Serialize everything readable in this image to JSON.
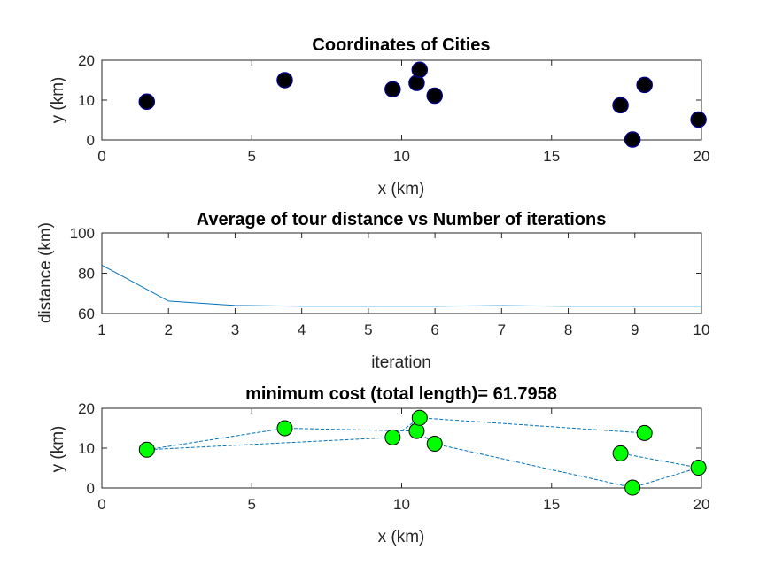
{
  "colors": {
    "background": "#ffffff",
    "axes": "#262626",
    "line": "#0072bd",
    "city_fill": "#000000",
    "city_edge": "#00007f",
    "route_marker_fill": "#00ff00",
    "route_marker_edge": "#000000"
  },
  "chart_data": [
    {
      "type": "scatter",
      "title": "Coordinates of Cities",
      "xlabel": "x  (km)",
      "ylabel": "y  (km)",
      "xlim": [
        0,
        20
      ],
      "ylim": [
        0,
        20
      ],
      "xticks": [
        0,
        5,
        10,
        15,
        20
      ],
      "yticks": [
        0,
        10,
        20
      ],
      "grid": false,
      "points": [
        {
          "x": 1.5,
          "y": 9.6
        },
        {
          "x": 6.1,
          "y": 15.0
        },
        {
          "x": 9.7,
          "y": 12.7
        },
        {
          "x": 10.5,
          "y": 14.3
        },
        {
          "x": 10.6,
          "y": 17.6
        },
        {
          "x": 11.1,
          "y": 11.1
        },
        {
          "x": 17.3,
          "y": 8.7
        },
        {
          "x": 17.7,
          "y": 0.1
        },
        {
          "x": 18.1,
          "y": 13.8
        },
        {
          "x": 19.9,
          "y": 5.1
        }
      ]
    },
    {
      "type": "line",
      "title": "Average of tour distance vs Number of iterations",
      "xlabel": "iteration",
      "ylabel": "distance (km)",
      "xlim": [
        1,
        10
      ],
      "ylim": [
        60,
        100
      ],
      "xticks": [
        1,
        2,
        3,
        4,
        5,
        6,
        7,
        8,
        9,
        10
      ],
      "yticks": [
        60,
        80,
        100
      ],
      "grid": false,
      "x": [
        1,
        2,
        3,
        4,
        5,
        6,
        7,
        8,
        9,
        10
      ],
      "y": [
        84.0,
        66.2,
        64.0,
        63.6,
        63.6,
        63.6,
        63.9,
        63.6,
        63.6,
        63.6
      ]
    },
    {
      "type": "line",
      "title": "minimum cost (total length)= 61.7958",
      "xlabel": "x (km)",
      "ylabel": "y (km)",
      "xlim": [
        0,
        20
      ],
      "ylim": [
        0,
        20
      ],
      "xticks": [
        0,
        5,
        10,
        15,
        20
      ],
      "yticks": [
        0,
        10,
        20
      ],
      "grid": false,
      "line_style": "dashed",
      "route": [
        {
          "x": 1.5,
          "y": 9.6
        },
        {
          "x": 6.1,
          "y": 15.0
        },
        {
          "x": 10.5,
          "y": 14.3
        },
        {
          "x": 11.1,
          "y": 11.1
        },
        {
          "x": 17.7,
          "y": 0.1
        },
        {
          "x": 19.9,
          "y": 5.1
        },
        {
          "x": 17.3,
          "y": 8.7
        }
      ],
      "route2": [
        {
          "x": 18.1,
          "y": 13.8
        },
        {
          "x": 10.6,
          "y": 17.6
        },
        {
          "x": 9.7,
          "y": 12.7
        },
        {
          "x": 1.5,
          "y": 9.6
        }
      ],
      "points": [
        {
          "x": 1.5,
          "y": 9.6
        },
        {
          "x": 6.1,
          "y": 15.0
        },
        {
          "x": 9.7,
          "y": 12.7
        },
        {
          "x": 10.5,
          "y": 14.3
        },
        {
          "x": 10.6,
          "y": 17.6
        },
        {
          "x": 11.1,
          "y": 11.1
        },
        {
          "x": 17.3,
          "y": 8.7
        },
        {
          "x": 17.7,
          "y": 0.1
        },
        {
          "x": 18.1,
          "y": 13.8
        },
        {
          "x": 19.9,
          "y": 5.1
        }
      ]
    }
  ]
}
